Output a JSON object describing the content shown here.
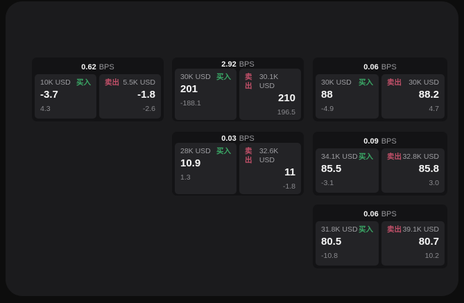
{
  "labels": {
    "bps_unit": "BPS",
    "buy": "买入",
    "sell": "卖出"
  },
  "colors": {
    "background": "#0d0d0d",
    "panel": "#1b1b1d",
    "card": "#131315",
    "side_panel": "#232326",
    "buy_green": "#3aa665",
    "sell_red": "#c15069",
    "text_primary": "#f7f7f7",
    "text_secondary": "#9d9da1"
  },
  "cards": [
    {
      "bps": "0.62",
      "buy": {
        "size": "10K USD",
        "price": "-3.7",
        "delta": "4.3"
      },
      "sell": {
        "size": "5.5K USD",
        "price": "-1.8",
        "delta": "-2.6"
      }
    },
    {
      "bps": "2.92",
      "buy": {
        "size": "30K USD",
        "price": "201",
        "delta": "-188.1"
      },
      "sell": {
        "size": "30.1K USD",
        "price": "210",
        "delta": "196.5"
      }
    },
    {
      "bps": "0.06",
      "buy": {
        "size": "30K USD",
        "price": "88",
        "delta": "-4.9"
      },
      "sell": {
        "size": "30K USD",
        "price": "88.2",
        "delta": "4.7"
      }
    },
    {
      "bps": "0.03",
      "buy": {
        "size": "28K USD",
        "price": "10.9",
        "delta": "1.3"
      },
      "sell": {
        "size": "32.6K USD",
        "price": "11",
        "delta": "-1.8"
      }
    },
    {
      "bps": "0.09",
      "buy": {
        "size": "34.1K USD",
        "price": "85.5",
        "delta": "-3.1"
      },
      "sell": {
        "size": "32.8K USD",
        "price": "85.8",
        "delta": "3.0"
      }
    },
    {
      "bps": "0.06",
      "buy": {
        "size": "31.8K USD",
        "price": "80.5",
        "delta": "-10.8"
      },
      "sell": {
        "size": "39.1K USD",
        "price": "80.7",
        "delta": "10.2"
      }
    }
  ]
}
